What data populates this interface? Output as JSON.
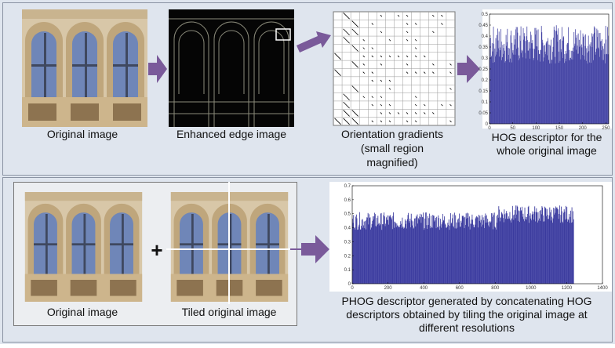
{
  "top": {
    "original_label": "Original image",
    "edge_label": "Enhanced edge image",
    "gradient_label": [
      "Orientation gradients",
      "(small region",
      "magnified)"
    ],
    "hog_label": [
      "HOG descriptor for the",
      "whole original image"
    ]
  },
  "hog_chart": {
    "xlim": [
      0,
      256
    ],
    "ylim": [
      0,
      0.5
    ],
    "xticks": [
      0,
      50,
      100,
      150,
      200,
      250
    ],
    "yticks": [
      0,
      0.05,
      0.1,
      0.15,
      0.2,
      0.25,
      0.3,
      0.35,
      0.4,
      0.45,
      0.5
    ]
  },
  "bottom": {
    "original_label": "Original image",
    "plus": "+",
    "tiled_label": "Tiled original image",
    "phog_label": [
      "PHOG descriptor generated by concatenating HOG",
      "descriptors obtained by tiling the original image at",
      "different resolutions"
    ]
  },
  "phog_chart": {
    "xlim": [
      0,
      1400
    ],
    "ylim": [
      0,
      0.7
    ],
    "xticks": [
      0,
      200,
      400,
      600,
      800,
      1000,
      1200,
      1400
    ],
    "yticks": [
      0,
      0.1,
      0.2,
      0.3,
      0.4,
      0.5,
      0.6,
      0.7
    ]
  }
}
